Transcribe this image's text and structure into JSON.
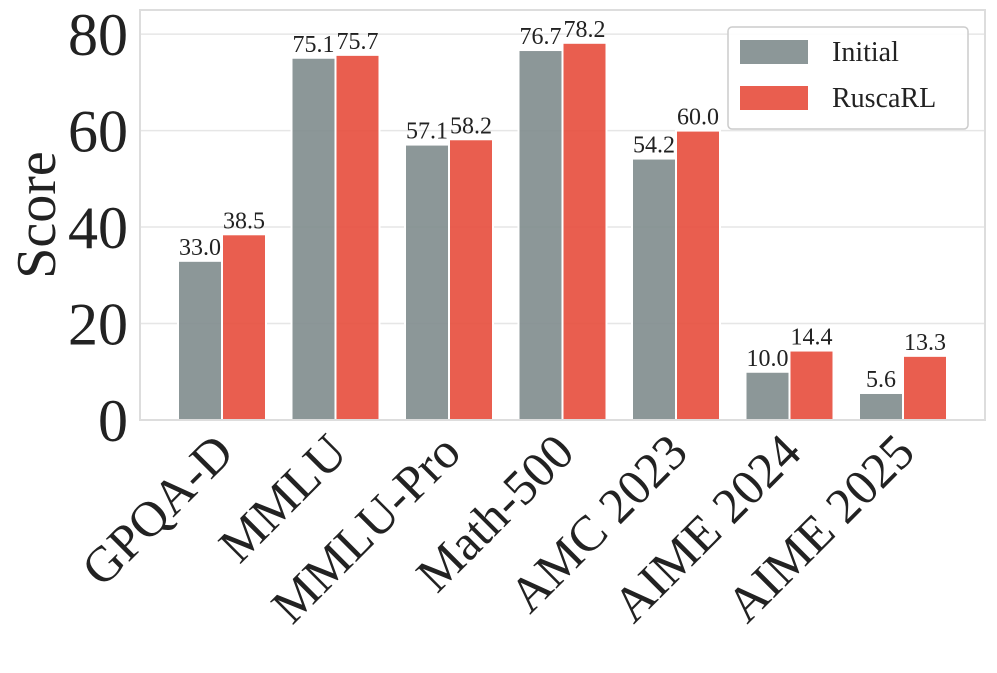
{
  "chart_data": {
    "type": "bar",
    "categories": [
      "GPQA-D",
      "MMLU",
      "MMLU-Pro",
      "Math-500",
      "AMC 2023",
      "AIME 2024",
      "AIME 2025"
    ],
    "series": [
      {
        "name": "Initial",
        "values": [
          33.0,
          75.1,
          57.1,
          76.7,
          54.2,
          10.0,
          5.6
        ],
        "color": "#7f8c8d"
      },
      {
        "name": "RuscaRL",
        "values": [
          38.5,
          75.7,
          58.2,
          78.2,
          60.0,
          14.4,
          13.3
        ],
        "color": "#e74c3c"
      }
    ],
    "data_labels": [
      [
        "33.0",
        "75.1",
        "57.1",
        "76.7",
        "54.2",
        "10.0",
        "5.6"
      ],
      [
        "38.5",
        "75.7",
        "58.2",
        "78.2",
        "60.0",
        "14.4",
        "13.3"
      ]
    ],
    "ylabel": "Score",
    "xlabel": "",
    "ylim": [
      0,
      85
    ],
    "yticks": [
      0,
      20,
      40,
      60,
      80
    ],
    "grid": true,
    "legend_position": "top-right"
  }
}
